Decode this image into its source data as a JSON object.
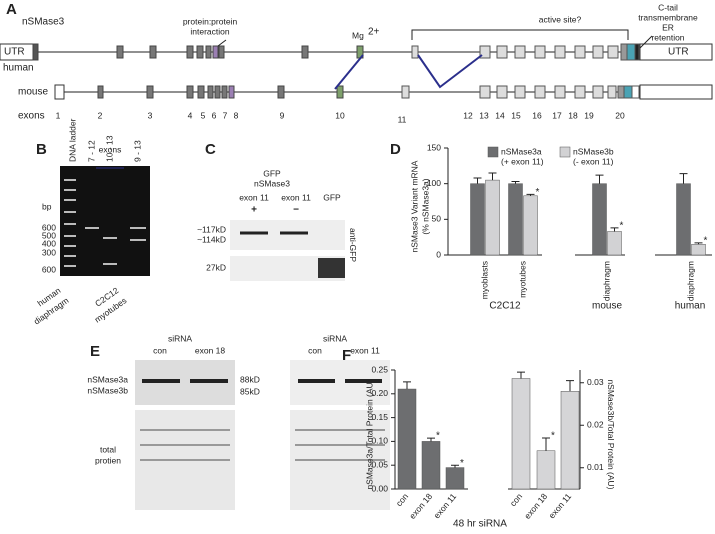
{
  "panels": {
    "a": {
      "label": "A",
      "title": "nSMase3",
      "protein_interaction": [
        "protein:protein",
        "interaction"
      ],
      "mg": "Mg",
      "mg_sup": "2+",
      "active_site": "active site?",
      "c_tail": [
        "C-tail",
        "transmembrane"
      ],
      "er": [
        "ER",
        "retention"
      ],
      "utr_left": "UTR",
      "utr_right": "UTR",
      "utr_mouse": "UTR",
      "human": "human",
      "mouse": "mouse",
      "exons_label": "exons",
      "exon_numbers": [
        "1",
        "2",
        "3",
        "4",
        "5",
        "6",
        "7",
        "8",
        "9",
        "10",
        "11",
        "12",
        "13",
        "14",
        "15",
        "16",
        "17",
        "18",
        "19",
        "20"
      ]
    },
    "b": {
      "label": "B",
      "bp": "bp",
      "ladder": "DNA ladder",
      "exons": "exons",
      "lanes": [
        "7 - 12",
        "10 - 13",
        "9 - 13"
      ],
      "sizes": [
        "600",
        "500",
        "400",
        "300",
        "600"
      ],
      "samples": [
        [
          "human",
          "diaphragm"
        ],
        [
          "C2C12",
          "myotubes"
        ]
      ]
    },
    "c": {
      "label": "C",
      "construct": [
        "GFP",
        "nSMase3"
      ],
      "exon": "exon 11",
      "lanes": [
        "+",
        "−"
      ],
      "gfp": "GFP",
      "sizes": [
        "~117kD",
        "~114kD",
        "27kD"
      ],
      "antibody": "anti-GFP"
    },
    "d": {
      "label": "D",
      "groups": [
        "C2C12",
        "mouse",
        "human"
      ]
    },
    "e": {
      "label": "E",
      "sirna": [
        "siRNA",
        "siRNA"
      ],
      "lanes": [
        "con",
        "exon 18",
        "con",
        "exon 11"
      ],
      "bands": [
        "nSMase3a",
        "nSMase3b"
      ],
      "sizes": [
        "88kD",
        "85kD"
      ],
      "total": [
        "total",
        "protien"
      ]
    },
    "f": {
      "label": "F",
      "xlabel": "48 hr siRNA"
    }
  },
  "chart_data": [
    {
      "type": "bar",
      "y_label": [
        "nSMase3 Variant mRNA",
        "(% nSMase3a)"
      ],
      "categories": [
        "myoblasts",
        "myotubes",
        "diaphragm",
        "diaphragm"
      ],
      "series": [
        {
          "name": "nSMase3a",
          "note": "(+ exon 11)",
          "color": "#6d6e70",
          "values": [
            100,
            100,
            100,
            100
          ],
          "errors": [
            8,
            3,
            12,
            14
          ]
        },
        {
          "name": "nSMase3b",
          "note": "(- exon 11)",
          "color": "#d2d2d4",
          "values": [
            105,
            83,
            33,
            15
          ],
          "errors": [
            10,
            2,
            5,
            2
          ],
          "markers": [
            null,
            "*",
            "*",
            "*"
          ]
        }
      ],
      "ylim": [
        0,
        150
      ],
      "yticks": [
        0,
        50,
        100,
        150
      ]
    },
    {
      "type": "bar",
      "y_label": "nSMase3a/Total Protein (AU)",
      "categories": [
        "con",
        "exon 18",
        "exon 11"
      ],
      "color": "#6d6e70",
      "values": [
        0.21,
        0.1,
        0.045
      ],
      "errors": [
        0.015,
        0.007,
        0.005
      ],
      "markers": [
        null,
        "*",
        "*"
      ],
      "ylim": [
        0,
        0.25
      ],
      "yticks": [
        {
          "value": 0,
          "label": "0.00"
        },
        0.05,
        {
          "value": 0.1,
          "label": "0.10"
        },
        0.15,
        {
          "value": 0.2,
          "label": "0.20"
        },
        0.25
      ]
    },
    {
      "type": "bar",
      "y_label": "nSMase3b/Total Protein (AU)",
      "categories": [
        "con",
        "exon 18",
        "exon 11"
      ],
      "color": "#d5d5d7",
      "axis": "y2",
      "values": [
        0.031,
        0.014,
        0.028
      ],
      "errors": [
        0.0015,
        0.003,
        0.0025
      ],
      "markers": [
        null,
        "*",
        null
      ],
      "ylim": [
        0.005,
        0.033
      ],
      "yticks": [
        0.01,
        0.02,
        0.03
      ]
    }
  ]
}
